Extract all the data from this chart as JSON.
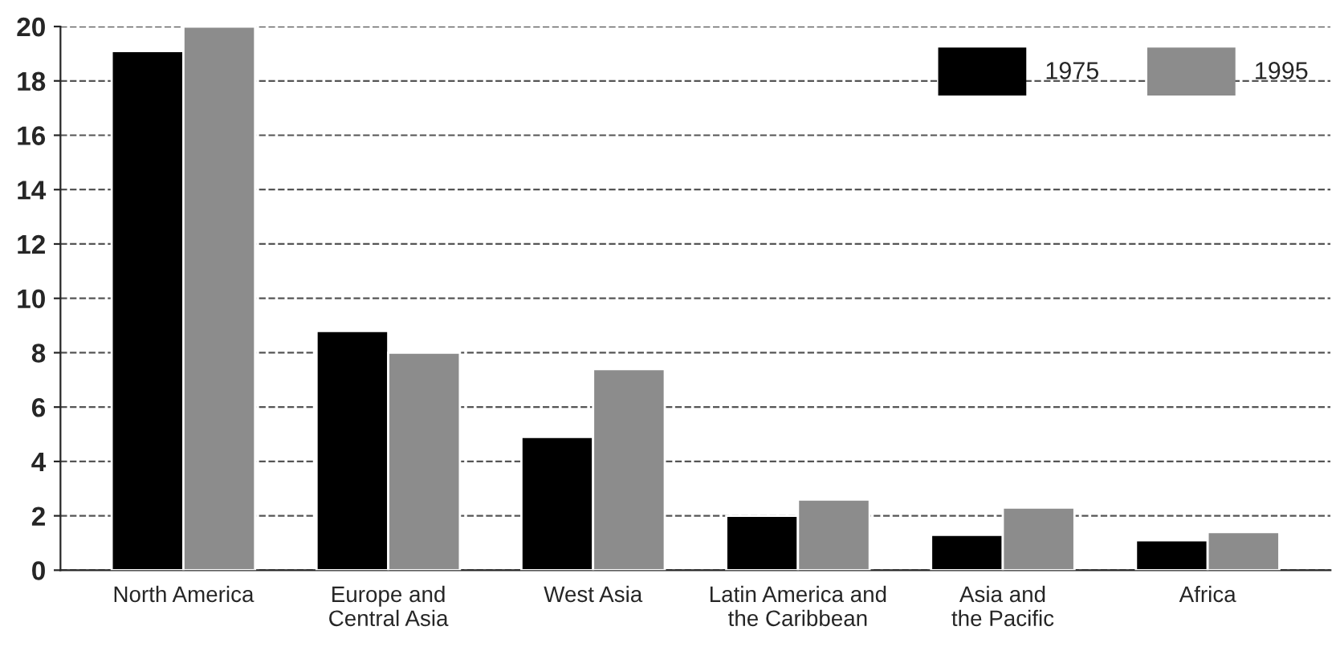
{
  "chart_data": {
    "type": "bar",
    "categories": [
      "North America",
      "Europe and\nCentral Asia",
      "West Asia",
      "Latin America and\nthe Caribbean",
      "Asia and\nthe Pacific",
      "Africa"
    ],
    "series": [
      {
        "name": "1975",
        "color": "#000000",
        "values": [
          19.1,
          8.8,
          4.9,
          2.0,
          1.3,
          1.1
        ]
      },
      {
        "name": "1995",
        "color": "#8c8c8c",
        "values": [
          20.0,
          8.0,
          7.4,
          2.6,
          2.3,
          1.4
        ]
      }
    ],
    "ylim": [
      0,
      20
    ],
    "yticks": [
      0,
      2,
      4,
      6,
      8,
      10,
      12,
      14,
      16,
      18,
      20
    ],
    "grid": "y",
    "legend": "top right"
  }
}
